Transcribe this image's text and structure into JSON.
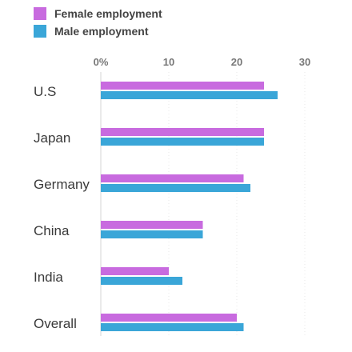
{
  "chart_data": {
    "type": "bar",
    "orientation": "horizontal",
    "categories": [
      "U.S",
      "Japan",
      "Germany",
      "China",
      "India",
      "Overall"
    ],
    "series": [
      {
        "name": "Female employment",
        "color": "#c86bdf",
        "values": [
          24,
          24,
          21,
          15,
          10,
          20
        ]
      },
      {
        "name": "Male employment",
        "color": "#3aa6d8",
        "values": [
          26,
          24,
          22,
          15,
          12,
          21
        ]
      }
    ],
    "x_ticks": [
      "0%",
      "10",
      "20",
      "30"
    ],
    "xlim": [
      0,
      30
    ],
    "legend_position": "top-left",
    "grid": true
  }
}
